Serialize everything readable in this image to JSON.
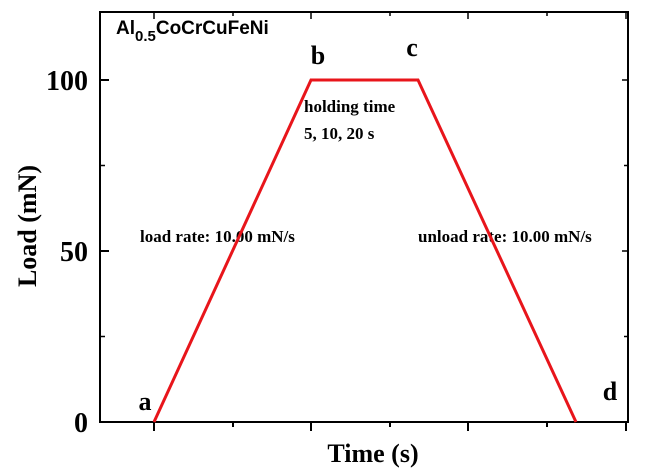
{
  "chart_data": {
    "type": "line",
    "title_main": "Al",
    "title_sub": "0.5",
    "title_rest": "CoCrCuFeNi",
    "xlabel": "Time (s)",
    "ylabel": "Load (mN)",
    "ylim": [
      0,
      120
    ],
    "xlim": [
      -2,
      20
    ],
    "y_ticks": [
      0,
      50,
      100
    ],
    "y_tick_labels": [
      "0",
      "50",
      "100"
    ],
    "x_ticks": [
      3,
      6,
      9,
      12,
      15,
      18
    ],
    "series": [
      {
        "color": "#e8151b",
        "x": [
          0,
          10,
          14,
          24
        ],
        "y": [
          0,
          100,
          100,
          0
        ]
      }
    ],
    "points": [
      {
        "label": "a",
        "x": 0,
        "y": 0
      },
      {
        "label": "b",
        "x": 10,
        "y": 100
      },
      {
        "label": "c",
        "x": 14,
        "y": 100
      },
      {
        "label": "d",
        "x": 24,
        "y": 0
      }
    ],
    "annotations": {
      "holding_line1": "holding time",
      "holding_line2": "5, 10, 20 s",
      "load_rate": "load rate: 10.00 mN/s",
      "unload_rate": "unload rate: 10.00 mN/s"
    },
    "grid": false
  }
}
